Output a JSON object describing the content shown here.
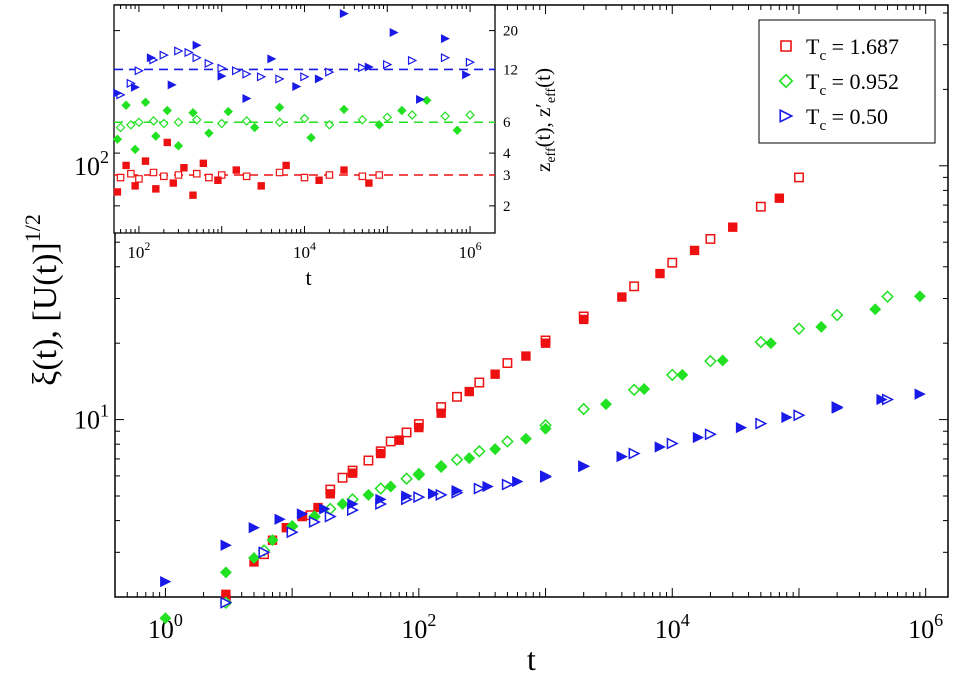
{
  "chart_data": [
    {
      "id": "main",
      "type": "scatter",
      "title": "",
      "xlabel": "t",
      "ylabel": "ξ(t), [U(t)]",
      "ylabel_exponent": "1/2",
      "xscale": "log",
      "yscale": "log",
      "xlim": [
        0.4,
        1500000
      ],
      "ylim": [
        2,
        430
      ],
      "x_ticks": [
        {
          "value": 1,
          "base": "10",
          "exp": "0"
        },
        {
          "value": 100,
          "base": "10",
          "exp": "2"
        },
        {
          "value": 10000,
          "base": "10",
          "exp": "4"
        },
        {
          "value": 1000000,
          "base": "10",
          "exp": "6"
        }
      ],
      "y_ticks": [
        {
          "value": 10,
          "base": "10",
          "exp": "1"
        },
        {
          "value": 100,
          "base": "10",
          "exp": "2"
        }
      ],
      "legend_position": "top-right",
      "series": [
        {
          "key": "s1",
          "name_main": "T",
          "name_sub": "c",
          "name_value": " = 1.687",
          "color": "#ee1111",
          "open_marker": "square",
          "filled_marker": "square",
          "open_t": [
            3,
            6,
            14,
            20,
            25,
            30,
            40,
            50,
            60,
            80,
            100,
            150,
            200,
            300,
            500,
            1000,
            2000,
            5000,
            10000,
            20000,
            50000,
            100000
          ],
          "open_y": [
            1.95,
            2.95,
            4.2,
            5.3,
            5.9,
            6.3,
            6.9,
            7.5,
            8.2,
            8.9,
            9.6,
            11.2,
            12.3,
            14.0,
            16.7,
            20.5,
            25.5,
            33.5,
            41.5,
            51.5,
            69.0,
            90.0
          ],
          "filled_t": [
            3,
            5,
            7,
            9,
            12,
            16,
            20,
            30,
            50,
            70,
            100,
            150,
            250,
            400,
            700,
            1000,
            2000,
            4000,
            8000,
            15000,
            30000,
            70000
          ],
          "filled_y": [
            2.05,
            2.75,
            3.35,
            3.75,
            4.15,
            4.5,
            5.1,
            6.15,
            7.35,
            8.3,
            9.3,
            10.6,
            12.9,
            15.1,
            17.8,
            20.0,
            24.8,
            30.4,
            37.6,
            46.4,
            57.3,
            74.5
          ]
        },
        {
          "key": "s2",
          "name_main": "T",
          "name_sub": "c",
          "name_value": " = 0.952",
          "color": "#22e022",
          "open_marker": "diamond",
          "filled_marker": "diamond",
          "open_t": [
            3,
            6,
            10,
            15,
            20,
            30,
            50,
            80,
            100,
            150,
            200,
            300,
            500,
            1000,
            2000,
            5000,
            10000,
            20000,
            50000,
            100000,
            200000,
            500000
          ],
          "open_y": [
            1.9,
            3.05,
            3.8,
            4.15,
            4.45,
            4.85,
            5.35,
            5.85,
            6.1,
            6.55,
            6.95,
            7.5,
            8.2,
            9.5,
            11.0,
            13.1,
            15.0,
            17.0,
            20.2,
            22.8,
            25.8,
            30.5
          ],
          "filled_t": [
            1,
            3,
            5,
            7,
            10,
            15,
            25,
            40,
            60,
            100,
            150,
            250,
            400,
            700,
            1000,
            3000,
            6000,
            12000,
            25000,
            60000,
            150000,
            400000,
            900000
          ],
          "filled_y": [
            1.65,
            2.5,
            2.85,
            3.35,
            3.8,
            4.15,
            4.65,
            5.05,
            5.45,
            6.05,
            6.5,
            7.05,
            7.65,
            8.4,
            9.2,
            11.5,
            13.2,
            15.0,
            17.1,
            20.0,
            23.2,
            27.2,
            30.6
          ]
        },
        {
          "key": "s3",
          "name_main": "T",
          "name_sub": "c",
          "name_value": " = 0.50",
          "color": "#1a1ae8",
          "open_marker": "triangle-right",
          "filled_marker": "triangle-right",
          "open_t": [
            3,
            6,
            10,
            15,
            20,
            30,
            50,
            80,
            100,
            150,
            200,
            300,
            500,
            1000,
            2000,
            5000,
            10000,
            20000,
            50000,
            100000,
            200000,
            500000
          ],
          "open_y": [
            1.9,
            3.0,
            3.6,
            3.95,
            4.15,
            4.4,
            4.65,
            4.85,
            4.95,
            5.05,
            5.15,
            5.35,
            5.55,
            5.95,
            6.55,
            7.35,
            8.05,
            8.75,
            9.65,
            10.4,
            11.2,
            12.0
          ],
          "filled_t": [
            1,
            3,
            5,
            8,
            12,
            18,
            30,
            50,
            80,
            130,
            200,
            350,
            600,
            1000,
            2000,
            4000,
            8000,
            16000,
            35000,
            80000,
            200000,
            450000,
            900000
          ],
          "filled_y": [
            2.3,
            3.2,
            3.75,
            4.05,
            4.25,
            4.45,
            4.65,
            4.85,
            5.0,
            5.1,
            5.25,
            5.45,
            5.7,
            6.0,
            6.55,
            7.15,
            7.8,
            8.5,
            9.3,
            10.2,
            11.1,
            12.0,
            12.6
          ]
        }
      ]
    },
    {
      "id": "inset",
      "type": "scatter",
      "title": "",
      "xlabel": "t",
      "ylabel_parts": [
        "z",
        "eff",
        "(t), z′",
        "eff",
        "(t)"
      ],
      "xscale": "log",
      "yscale": "log",
      "xlim": [
        50,
        2000000
      ],
      "ylim": [
        1.4,
        28
      ],
      "x_ticks": [
        {
          "value": 100,
          "base": "10",
          "exp": "2"
        },
        {
          "value": 10000,
          "base": "10",
          "exp": "4"
        },
        {
          "value": 1000000,
          "base": "10",
          "exp": "6"
        }
      ],
      "y_ticks": [
        2,
        3,
        4,
        6,
        12,
        20
      ],
      "reference_lines": [
        {
          "value": 3,
          "color": "#ee1111"
        },
        {
          "value": 6,
          "color": "#22e022"
        },
        {
          "value": 12,
          "color": "#1a1ae8"
        }
      ],
      "series": [
        {
          "key": "s1",
          "color": "#ee1111",
          "open_t": [
            60,
            80,
            100,
            150,
            200,
            300,
            500,
            700,
            1000,
            2000,
            5000,
            10000,
            20000,
            50000,
            80000
          ],
          "open_y": [
            2.9,
            3.05,
            2.85,
            3.1,
            2.95,
            3.0,
            3.05,
            2.9,
            3.0,
            2.95,
            3.1,
            2.9,
            3.0,
            2.95,
            3.0
          ],
          "filled_t": [
            55,
            70,
            90,
            120,
            160,
            220,
            260,
            350,
            450,
            600,
            900,
            1500,
            3000,
            6000,
            15000,
            30000,
            60000
          ],
          "filled_y": [
            2.4,
            3.4,
            2.6,
            3.6,
            2.5,
            4.6,
            2.7,
            3.3,
            2.3,
            3.5,
            2.8,
            3.2,
            2.6,
            3.4,
            2.8,
            3.2,
            2.7
          ]
        },
        {
          "key": "s2",
          "color": "#22e022",
          "open_t": [
            60,
            80,
            100,
            150,
            200,
            300,
            500,
            1000,
            2000,
            5000,
            10000,
            20000,
            50000,
            100000,
            200000,
            500000,
            1000000
          ],
          "open_y": [
            5.6,
            5.8,
            6.0,
            6.1,
            5.9,
            6.0,
            6.2,
            5.9,
            6.1,
            6.0,
            6.3,
            5.8,
            6.2,
            6.4,
            6.6,
            6.5,
            6.6
          ],
          "filled_t": [
            55,
            70,
            90,
            120,
            160,
            220,
            300,
            450,
            700,
            1200,
            2500,
            5000,
            12000,
            30000,
            80000,
            150000,
            300000,
            700000
          ],
          "filled_y": [
            4.8,
            7.5,
            4.2,
            7.8,
            5.0,
            7.0,
            4.4,
            6.8,
            5.2,
            6.9,
            5.6,
            7.3,
            4.9,
            7.1,
            5.8,
            7.0,
            8.0,
            5.4
          ]
        },
        {
          "key": "s3",
          "color": "#1a1ae8",
          "open_t": [
            60,
            80,
            100,
            150,
            200,
            300,
            400,
            500,
            700,
            1000,
            1500,
            2000,
            3000,
            5000,
            10000,
            20000,
            50000,
            100000,
            200000,
            500000,
            1000000
          ],
          "open_y": [
            8.6,
            10.0,
            11.8,
            13.6,
            14.5,
            15.3,
            15.0,
            14.0,
            13.0,
            12.2,
            11.8,
            11.3,
            10.9,
            10.6,
            10.9,
            11.6,
            12.3,
            12.8,
            13.5,
            14.0,
            13.2
          ],
          "filled_t": [
            55,
            90,
            140,
            250,
            500,
            1000,
            2000,
            4000,
            8000,
            15000,
            30000,
            60000,
            120000,
            250000,
            500000,
            900000
          ],
          "filled_y": [
            8.8,
            9.5,
            14.0,
            9.8,
            16.5,
            11.0,
            8.2,
            13.8,
            9.6,
            10.6,
            25.0,
            12.4,
            19.5,
            8.1,
            18.0,
            11.2
          ]
        }
      ]
    }
  ]
}
